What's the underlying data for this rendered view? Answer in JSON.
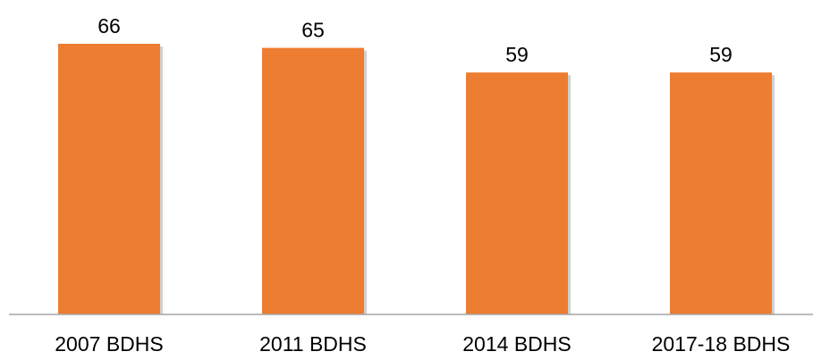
{
  "chart_data": {
    "type": "bar",
    "categories": [
      "2007 BDHS",
      "2011 BDHS",
      "2014 BDHS",
      "2017-18 BDHS"
    ],
    "values": [
      66,
      65,
      59,
      59
    ],
    "title": "",
    "xlabel": "",
    "ylabel": "",
    "ylim": [
      0,
      70
    ],
    "grid": false,
    "legend": "none",
    "data_labels": [
      "66",
      "65",
      "59",
      "59"
    ],
    "colors": {
      "bar": "#ED7D31",
      "bar_shadow": "#D0D0D0",
      "axis": "#A6A6A6",
      "text": "#000000"
    }
  }
}
